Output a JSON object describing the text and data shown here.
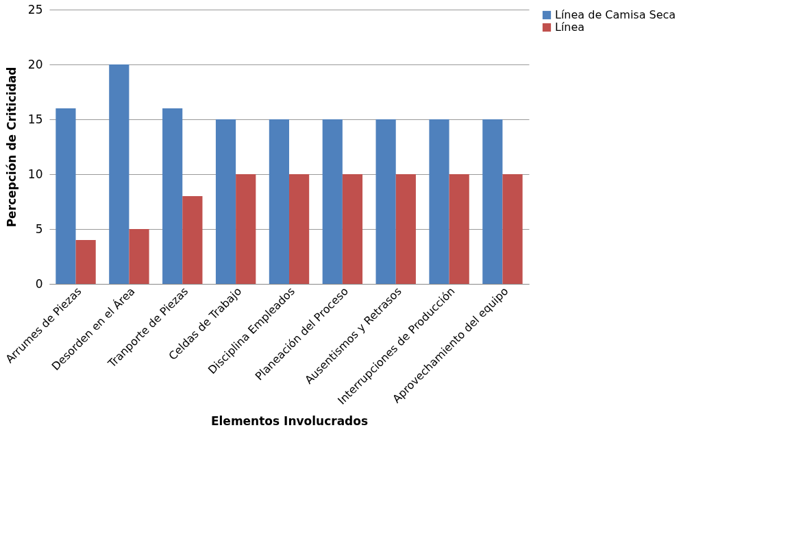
{
  "chart_data": {
    "type": "bar",
    "xlabel": "Elementos Involucrados",
    "ylabel": "Percepción de Criticidad",
    "categories": [
      "Arrumes de Piezas",
      "Desorden en el Área",
      "Tranporte de Piezas",
      "Celdas de Trabajo",
      "Disciplina Empleados",
      "Planeación del Proceso",
      "Ausentismos y Retrasos",
      "Interrupciones de Producción",
      "Aprovechamiento del equipo"
    ],
    "series": [
      {
        "name": "Línea de Camisa Seca",
        "color": "#4f81bd",
        "values": [
          16,
          20,
          16,
          15,
          15,
          15,
          15,
          15,
          15
        ]
      },
      {
        "name": "Línea",
        "color": "#c0504d",
        "values": [
          4,
          5,
          8,
          10,
          10,
          10,
          10,
          10,
          10
        ]
      }
    ],
    "ylim": [
      0,
      25
    ],
    "yticks": [
      0,
      5,
      10,
      15,
      20,
      25
    ],
    "grid": "y",
    "legend": "right"
  }
}
